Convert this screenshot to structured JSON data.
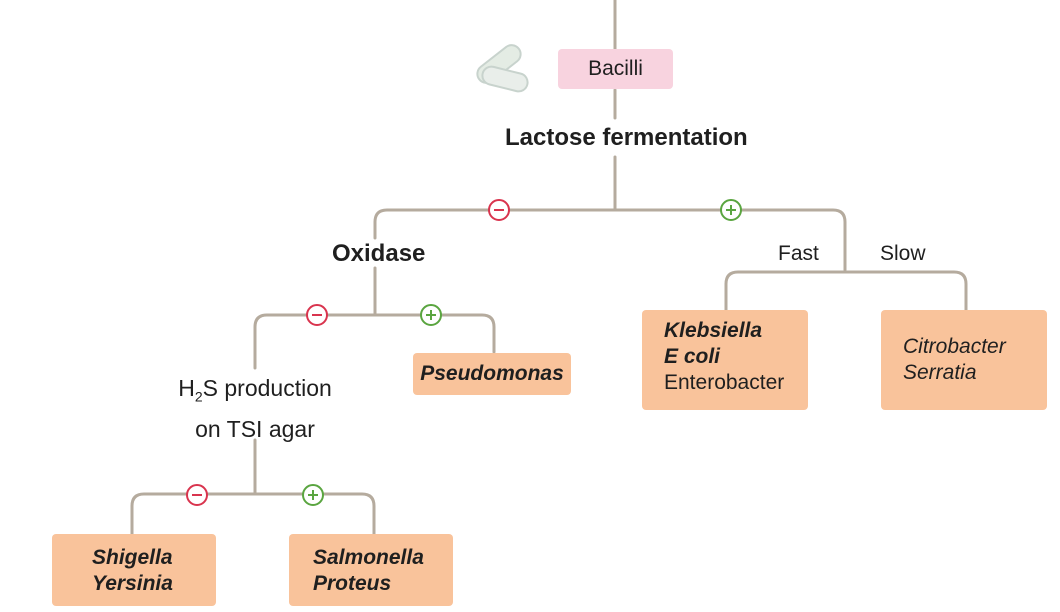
{
  "root": {
    "label": "Bacilli"
  },
  "lactose": {
    "label": "Lactose fermentation"
  },
  "oxidase": {
    "label": "Oxidase"
  },
  "fast": {
    "label": "Fast"
  },
  "slow": {
    "label": "Slow"
  },
  "h2s": {
    "line1_pre": "H",
    "line1_sub": "2",
    "line1_post": "S production",
    "line2": "on TSI agar"
  },
  "pseudomonas": {
    "label": "Pseudomonas"
  },
  "fast_box": {
    "line1": "Klebsiella",
    "line2": "E coli",
    "line3": "Enterobacter"
  },
  "slow_box": {
    "line1": "Citrobacter",
    "line2": "Serratia"
  },
  "h2s_neg_box": {
    "line1": "Shigella",
    "line2": "Yersinia"
  },
  "h2s_pos_box": {
    "line1": "Salmonella",
    "line2": "Proteus"
  },
  "colors": {
    "line": "#b5ab9e",
    "negative": "#d9344e",
    "positive": "#5aa540",
    "orange_box": "#f9c39b",
    "pink_box": "#f8d3df"
  },
  "icons": {
    "bacilli": "capsule-bacilli-icon",
    "negative": "minus-circle-icon",
    "positive": "plus-circle-icon"
  }
}
